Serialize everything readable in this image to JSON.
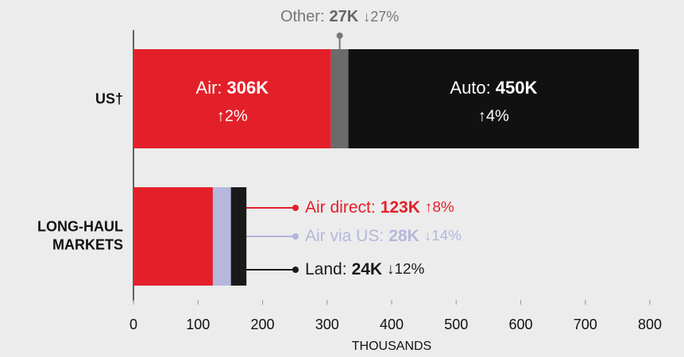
{
  "chart_data": {
    "type": "stacked-bar-horizontal",
    "categories": [
      "US†",
      "LONG-HAUL MARKETS"
    ],
    "series": [
      {
        "name": "Air:",
        "color": "#e3202a",
        "values": [
          306,
          null
        ],
        "value_labels": [
          "306K",
          null
        ],
        "changes": [
          "↑2%",
          null
        ]
      },
      {
        "name": "Other:",
        "color": "#6b6b6b",
        "values": [
          27,
          null
        ],
        "value_labels": [
          "27K",
          null
        ],
        "changes": [
          "↓27%",
          null
        ]
      },
      {
        "name": "Auto:",
        "color": "#111111",
        "values": [
          450,
          null
        ],
        "value_labels": [
          "450K",
          null
        ],
        "changes": [
          "↑4%",
          null
        ]
      },
      {
        "name": "Air direct:",
        "color": "#e3202a",
        "values": [
          null,
          123
        ],
        "value_labels": [
          null,
          "123K"
        ],
        "changes": [
          null,
          "↑8%"
        ]
      },
      {
        "name": "Air via US:",
        "color": "#b5b7dc",
        "values": [
          null,
          28
        ],
        "value_labels": [
          null,
          "28K"
        ],
        "changes": [
          null,
          "↓14%"
        ]
      },
      {
        "name": "Land:",
        "color": "#1a1a1a",
        "values": [
          null,
          24
        ],
        "value_labels": [
          null,
          "24K"
        ],
        "changes": [
          null,
          "↓12%"
        ]
      }
    ],
    "xlim": [
      0,
      800
    ],
    "xticks": [
      0,
      100,
      200,
      300,
      400,
      500,
      600,
      700,
      800
    ],
    "xlabel": "THOUSANDS"
  }
}
